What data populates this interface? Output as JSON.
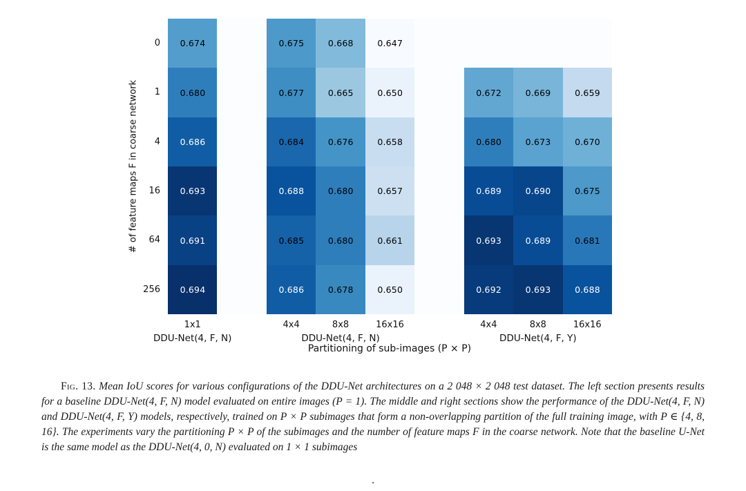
{
  "chart_data": {
    "type": "heatmap",
    "title": "",
    "xlabel": "Partitioning of sub-images (P × P)",
    "ylabel": "# of feature maps F in coarse network",
    "row_labels": [
      "0",
      "1",
      "4",
      "16",
      "64",
      "256"
    ],
    "vmin": 0.647,
    "vmax": 0.694,
    "colormap": "Blues",
    "colormap_stops": [
      [
        0.0,
        "#f7fbff"
      ],
      [
        0.125,
        "#deebf7"
      ],
      [
        0.25,
        "#c6dbef"
      ],
      [
        0.375,
        "#9ecae1"
      ],
      [
        0.5,
        "#6baed6"
      ],
      [
        0.625,
        "#4292c6"
      ],
      [
        0.75,
        "#2171b5"
      ],
      [
        0.875,
        "#08519c"
      ],
      [
        1.0,
        "#08306b"
      ]
    ],
    "empty_color": "#fcfdff",
    "annotation_colors": {
      "light_text": "#ffffff",
      "dark_text": "#000000"
    },
    "sections": [
      {
        "name": "baseline",
        "model_label": "DDU-Net(4, F, N)",
        "col_labels": [
          "1x1"
        ],
        "values": [
          [
            0.674
          ],
          [
            0.68
          ],
          [
            0.686
          ],
          [
            0.693
          ],
          [
            0.691
          ],
          [
            0.694
          ]
        ]
      },
      {
        "name": "middle",
        "model_label": "DDU-Net(4, F, N)",
        "col_labels": [
          "4x4",
          "8x8",
          "16x16"
        ],
        "values": [
          [
            0.675,
            0.668,
            0.647
          ],
          [
            0.677,
            0.665,
            0.65
          ],
          [
            0.684,
            0.676,
            0.658
          ],
          [
            0.688,
            0.68,
            0.657
          ],
          [
            0.685,
            0.68,
            0.661
          ],
          [
            0.686,
            0.678,
            0.65
          ]
        ]
      },
      {
        "name": "right",
        "model_label": "DDU-Net(4, F, Y)",
        "col_labels": [
          "4x4",
          "8x8",
          "16x16"
        ],
        "values": [
          [
            null,
            null,
            null
          ],
          [
            0.672,
            0.669,
            0.659
          ],
          [
            0.68,
            0.673,
            0.67
          ],
          [
            0.689,
            0.69,
            0.675
          ],
          [
            0.693,
            0.689,
            0.681
          ],
          [
            0.692,
            0.693,
            0.688
          ]
        ]
      }
    ]
  },
  "caption": {
    "label": "Fig. 13.",
    "text": " Mean IoU scores for various configurations of the DDU-Net architectures on a 2 048 × 2 048 test dataset. The left section presents results for a baseline DDU-Net(4, F, N) model evaluated on entire images (P = 1). The middle and right sections show the performance of the DDU-Net(4, F, N) and DDU-Net(4, F, Y) models, respectively, trained on P × P subimages that form a non-overlapping partition of the full training image, with P ∈ {4, 8, 16}. The experiments vary the partitioning P × P of the subimages and the number of feature maps F in the coarse network. Note that the baseline U-Net is the same model as the DDU-Net(4, 0, N) evaluated on 1 × 1 subimages",
    "trailing_dot": "."
  }
}
